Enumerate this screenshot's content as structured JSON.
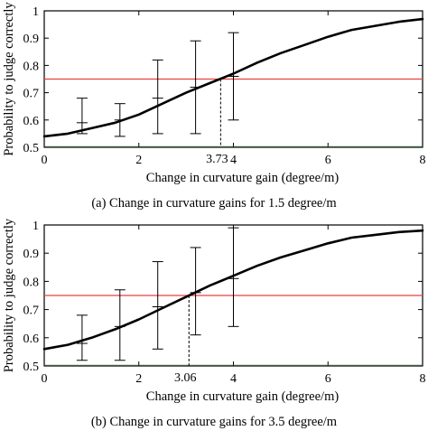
{
  "chart_data": [
    {
      "type": "line",
      "xlabel": "Change in curvature gain (degree/m)",
      "ylabel": "Probability to judge correctly",
      "caption": "(a) Change in curvature gains for 1.5 degree/m",
      "xlim": [
        0,
        8
      ],
      "ylim": [
        0.5,
        1.0
      ],
      "xticks": [
        "0",
        "2",
        "4",
        "6",
        "8"
      ],
      "yticks": [
        "0.5",
        "0.6",
        "0.7",
        "0.8",
        "0.9",
        "1"
      ],
      "curve": {
        "x": [
          0,
          0.5,
          1,
          1.5,
          2,
          2.5,
          3,
          3.5,
          4,
          4.5,
          5,
          5.5,
          6,
          6.5,
          7,
          7.5,
          8
        ],
        "y": [
          0.54,
          0.55,
          0.57,
          0.59,
          0.62,
          0.66,
          0.7,
          0.735,
          0.77,
          0.81,
          0.845,
          0.875,
          0.905,
          0.93,
          0.945,
          0.96,
          0.97
        ]
      },
      "threshold": 0.75,
      "threshold_x": 3.73,
      "threshold_label": "3.73",
      "error_bars": [
        {
          "x": 0.8,
          "low": 0.55,
          "high": 0.68,
          "mid": 0.59
        },
        {
          "x": 1.6,
          "low": 0.54,
          "high": 0.66,
          "mid": 0.6
        },
        {
          "x": 2.4,
          "low": 0.55,
          "high": 0.82,
          "mid": 0.68
        },
        {
          "x": 3.2,
          "low": 0.55,
          "high": 0.89,
          "mid": 0.72
        },
        {
          "x": 4.0,
          "low": 0.6,
          "high": 0.92,
          "mid": 0.76
        }
      ]
    },
    {
      "type": "line",
      "xlabel": "Change in curvature gain (degree/m)",
      "ylabel": "Probability to judge correctly",
      "caption": "(b) Change in curvature gains for 3.5 degree/m",
      "xlim": [
        0,
        8
      ],
      "ylim": [
        0.5,
        1.0
      ],
      "xticks": [
        "0",
        "2",
        "4",
        "6",
        "8"
      ],
      "yticks": [
        "0.5",
        "0.6",
        "0.7",
        "0.8",
        "0.9",
        "1"
      ],
      "curve": {
        "x": [
          0,
          0.5,
          1,
          1.5,
          2,
          2.5,
          3,
          3.5,
          4,
          4.5,
          5,
          5.5,
          6,
          6.5,
          7,
          7.5,
          8
        ],
        "y": [
          0.56,
          0.575,
          0.6,
          0.63,
          0.665,
          0.705,
          0.745,
          0.785,
          0.82,
          0.855,
          0.885,
          0.91,
          0.935,
          0.955,
          0.965,
          0.975,
          0.98
        ]
      },
      "threshold": 0.75,
      "threshold_x": 3.06,
      "threshold_label": "3.06",
      "error_bars": [
        {
          "x": 0.8,
          "low": 0.52,
          "high": 0.68,
          "mid": 0.58
        },
        {
          "x": 1.6,
          "low": 0.52,
          "high": 0.77,
          "mid": 0.64
        },
        {
          "x": 2.4,
          "low": 0.56,
          "high": 0.87,
          "mid": 0.71
        },
        {
          "x": 3.2,
          "low": 0.61,
          "high": 0.92,
          "mid": 0.76
        },
        {
          "x": 4.0,
          "low": 0.64,
          "high": 0.99,
          "mid": 0.81
        }
      ]
    }
  ],
  "colors": {
    "curve": "#000000",
    "threshold": "#e8413c",
    "axis": "#000000",
    "tick_green": "#3a8a3a"
  }
}
